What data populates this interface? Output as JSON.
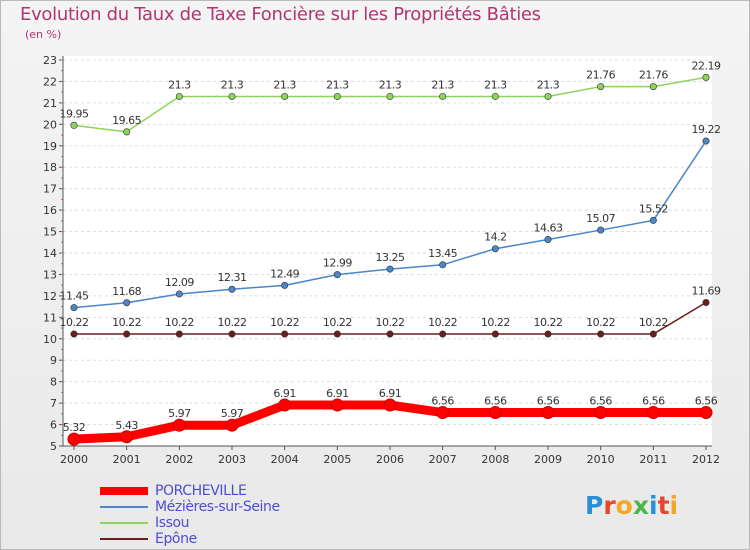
{
  "title": "Evolution du Taux de Taxe Foncière sur les Propriétés Bâties",
  "subtitle": "(en %)",
  "logo": {
    "text": "Proxiti",
    "colors": [
      "#2a8fd4",
      "#e8462e",
      "#f5a623",
      "#4db848",
      "#2a8fd4",
      "#e8462e",
      "#f5a623"
    ]
  },
  "chart_data": {
    "type": "line",
    "title": "Evolution du Taux de Taxe Foncière sur les Propriétés Bâties",
    "ylabel": "(en %)",
    "xlabel": "",
    "x": [
      "2000",
      "2001",
      "2002",
      "2003",
      "2004",
      "2005",
      "2006",
      "2007",
      "2008",
      "2009",
      "2010",
      "2011",
      "2012"
    ],
    "ylim": [
      5,
      23
    ],
    "yticks": [
      5,
      6,
      7,
      8,
      9,
      10,
      11,
      12,
      13,
      14,
      15,
      16,
      17,
      18,
      19,
      20,
      21,
      22,
      23
    ],
    "grid": "horizontal",
    "legend_position": "bottom-left",
    "series": [
      {
        "name": "PORCHEVILLE",
        "color": "#ff0000",
        "thick": true,
        "values": [
          5.32,
          5.43,
          5.97,
          5.97,
          6.91,
          6.91,
          6.91,
          6.56,
          6.56,
          6.56,
          6.56,
          6.56,
          6.56
        ],
        "labels": [
          "5.32",
          "5.43",
          "5.97",
          "5.97",
          "6.91",
          "6.91",
          "6.91",
          "6.56",
          "6.56",
          "6.56",
          "6.56",
          "6.56",
          "6.56"
        ]
      },
      {
        "name": "Mézières-sur-Seine",
        "color": "#4a86c8",
        "thick": false,
        "values": [
          11.45,
          11.68,
          12.09,
          12.31,
          12.49,
          12.99,
          13.25,
          13.45,
          14.2,
          14.63,
          15.07,
          15.52,
          19.22
        ],
        "labels": [
          "11.45",
          "11.68",
          "12.09",
          "12.31",
          "12.49",
          "12.99",
          "13.25",
          "13.45",
          "14.2",
          "14.63",
          "15.07",
          "15.52",
          "19.22"
        ]
      },
      {
        "name": "Issou",
        "color": "#8fd45a",
        "thick": false,
        "values": [
          19.95,
          19.65,
          21.3,
          21.3,
          21.3,
          21.3,
          21.3,
          21.3,
          21.3,
          21.3,
          21.76,
          21.76,
          22.19
        ],
        "labels": [
          "19.95",
          "19.65",
          "21.3",
          "21.3",
          "21.3",
          "21.3",
          "21.3",
          "21.3",
          "21.3",
          "21.3",
          "21.76",
          "21.76",
          "22.19"
        ]
      },
      {
        "name": "Epône",
        "color": "#6b1e1e",
        "thick": false,
        "values": [
          10.22,
          10.22,
          10.22,
          10.22,
          10.22,
          10.22,
          10.22,
          10.22,
          10.22,
          10.22,
          10.22,
          10.22,
          11.69
        ],
        "labels": [
          "10.22",
          "10.22",
          "10.22",
          "10.22",
          "10.22",
          "10.22",
          "10.22",
          "10.22",
          "10.22",
          "10.22",
          "10.22",
          "10.22",
          "11.69"
        ]
      }
    ]
  }
}
